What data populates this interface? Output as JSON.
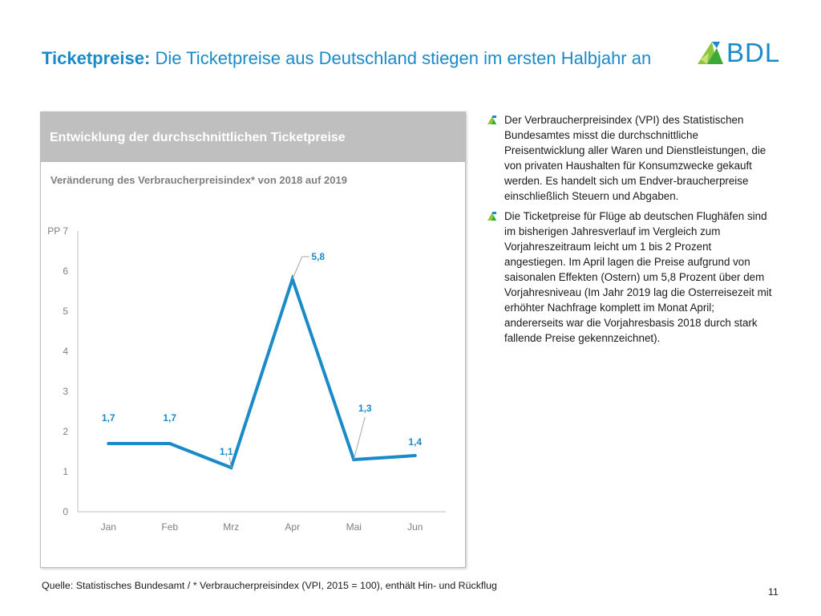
{
  "header": {
    "title_bold": "Ticketpreise:",
    "title_rest": " Die Ticketpreise aus Deutschland stiegen im ersten Halbjahr an",
    "logo_text": "BDL"
  },
  "chart_panel": {
    "header": "Entwicklung der durchschnittlichen Ticketpreise",
    "subtitle": "Veränderung des Verbraucherpreisindex* von 2018 auf 2019"
  },
  "chart_data": {
    "type": "line",
    "categories": [
      "Jan",
      "Feb",
      "Mrz",
      "Apr",
      "Mai",
      "Jun"
    ],
    "values": [
      1.7,
      1.7,
      1.1,
      5.8,
      1.3,
      1.4
    ],
    "data_labels": [
      "1,7",
      "1,7",
      "1,1",
      "5,8",
      "1,3",
      "1,4"
    ],
    "ylim": [
      0,
      7
    ],
    "yticks": [
      0,
      1,
      2,
      3,
      4,
      5,
      6,
      7
    ],
    "ytick_labels": [
      "0",
      "1",
      "2",
      "3",
      "4",
      "5",
      "6",
      "PP 7"
    ],
    "color": "#1a8ac9",
    "grid": false
  },
  "bullets": [
    {
      "text": "Der Verbraucherpreisindex (VPI) des Statistischen Bundesamtes misst die durchschnittliche Preisentwicklung aller Waren und Dienstleistungen, die von privaten Haushalten für Konsumzwecke gekauft werden. Es handelt sich um Endver-braucherpreise einschließlich Steuern und Abgaben."
    },
    {
      "text": "Die Ticketpreise für Flüge ab deutschen Flughäfen sind im bisherigen Jahresverlauf im Vergleich zum Vorjahreszeitraum leicht um 1 bis 2 Prozent angestiegen. Im April lagen die Preise aufgrund von saisonalen Effekten (Ostern) um 5,8 Prozent über dem Vorjahresniveau (Im Jahr 2019 lag die Osterreisezeit mit erhöhter Nachfrage komplett im Monat April; andererseits war die Vorjahresbasis 2018 durch stark fallende Preise gekennzeichnet)."
    }
  ],
  "footer": {
    "source": "Quelle: Statistisches Bundesamt   /   * Verbraucherpreisindex (VPI, 2015 = 100), enthält Hin- und Rückflug",
    "page_number": "11"
  }
}
